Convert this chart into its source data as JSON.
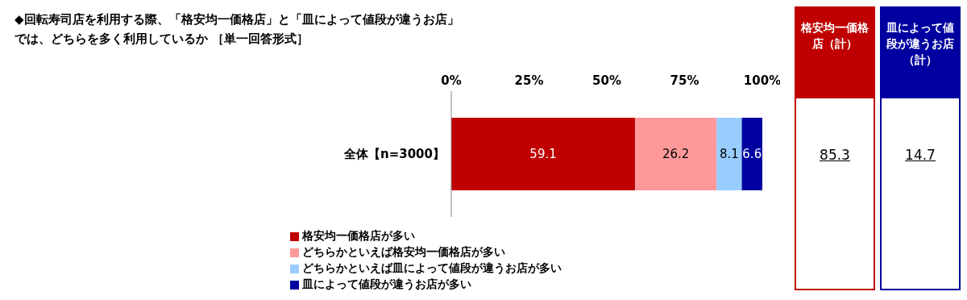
{
  "chart_data": {
    "type": "bar",
    "orientation": "horizontal",
    "stacked": true,
    "title": "◆回転寿司店を利用する際、「格安均一価格店」と「皿によって値段が違うお店」では、どちらを多く利用しているか ［単一回答形式］",
    "categories": [
      "全体【n=3000】"
    ],
    "series": [
      {
        "name": "格安均一価格店が多い",
        "color": "#c00000",
        "values": [
          59.1
        ]
      },
      {
        "name": "どちらかといえば格安均一価格店が多い",
        "color": "#ff9999",
        "values": [
          26.2
        ]
      },
      {
        "name": "どちらかといえば皿によって値段が違うお店が多い",
        "color": "#99ccff",
        "values": [
          8.1
        ]
      },
      {
        "name": "皿によって値段が違うお店が多い",
        "color": "#0000a0",
        "values": [
          6.6
        ]
      }
    ],
    "xlim": [
      0,
      100
    ],
    "xticks": [
      {
        "value": 0,
        "label": "0%"
      },
      {
        "value": 25,
        "label": "25%"
      },
      {
        "value": 50,
        "label": "50%"
      },
      {
        "value": 75,
        "label": "75%"
      },
      {
        "value": 100,
        "label": "100%"
      }
    ],
    "data_labels": true,
    "legend": "bottom",
    "annotations": [
      "格安均一価格店（計）",
      "85.3",
      "皿によって値段が違うお店（計）",
      "14.7"
    ]
  }
}
